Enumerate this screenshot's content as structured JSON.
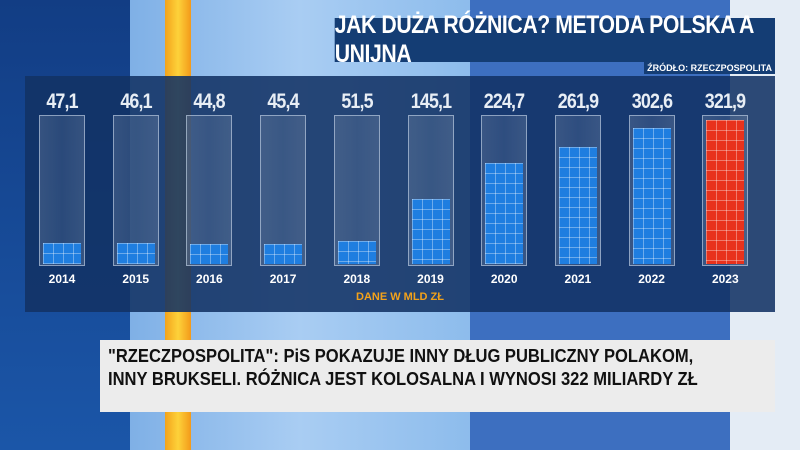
{
  "title": "JAK DUŻA RÓŻNICA? METODA POLSKA A UNIJNA",
  "source": "ŹRÓDŁO: RZECZPOSPOLITA",
  "unit_note": "DANE W MLD ZŁ",
  "caption": {
    "line1": "\"RZECZPOSPOLITA\": PiS POKAZUJE INNY DŁUG PUBLICZNY POLAKOM,",
    "line2": "INNY BRUKSELI. RÓŻNICA JEST KOLOSALNA I WYNOSI 322 MILIARDY ZŁ"
  },
  "colors": {
    "bar": "#1f7ee0",
    "highlight": "#e8321c",
    "unit_text": "#f3a21a"
  },
  "chart_data": {
    "type": "bar",
    "categories": [
      "2014",
      "2015",
      "2016",
      "2017",
      "2018",
      "2019",
      "2020",
      "2021",
      "2022",
      "2023"
    ],
    "values": [
      47.1,
      46.1,
      44.8,
      45.4,
      51.5,
      145.1,
      224.7,
      261.9,
      302.6,
      321.9
    ],
    "labels": [
      "47,1",
      "46,1",
      "44,8",
      "45,4",
      "51,5",
      "145,1",
      "224,7",
      "261,9",
      "302,6",
      "321,9"
    ],
    "highlighted": "2023",
    "ylim": [
      0,
      330
    ],
    "grid": false
  }
}
